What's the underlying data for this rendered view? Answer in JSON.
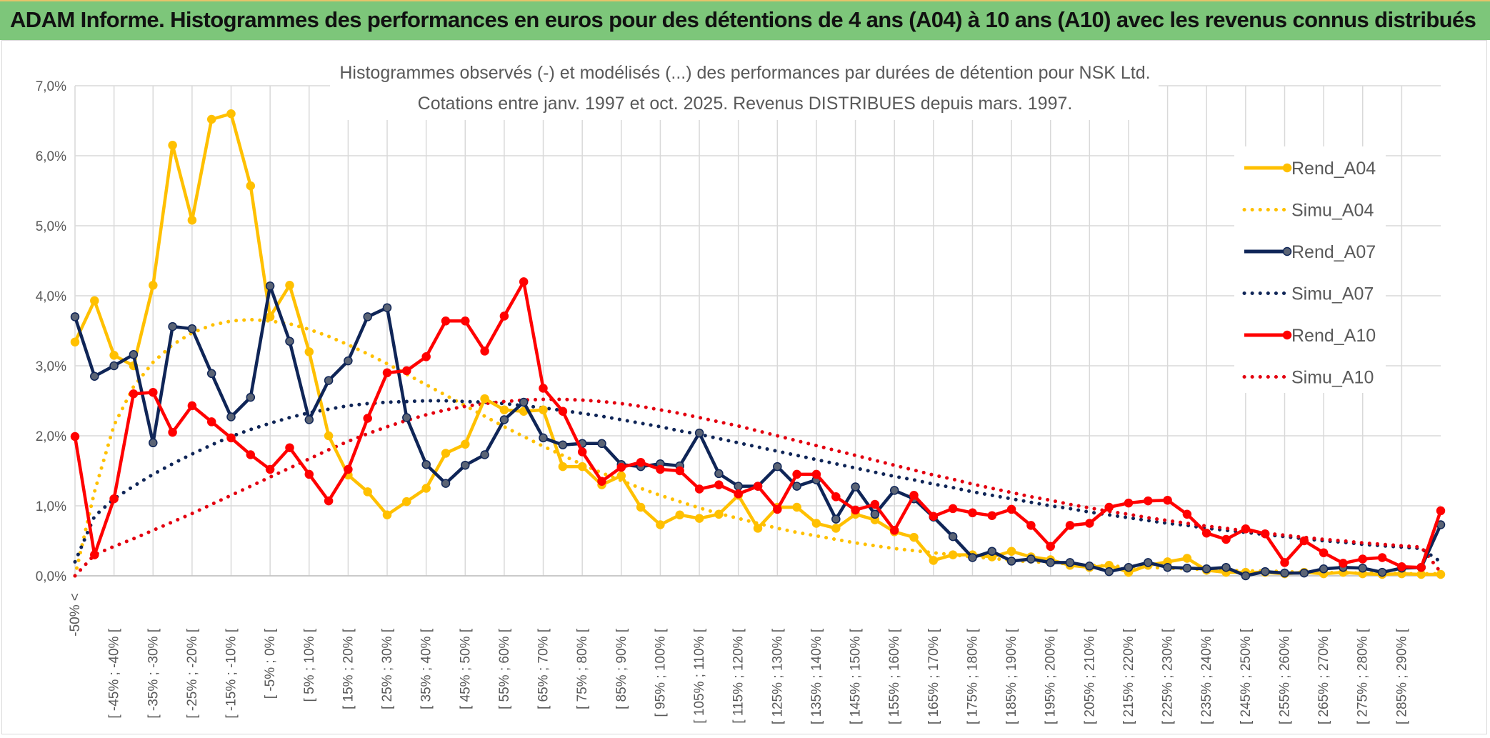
{
  "banner": {
    "title": "ADAM Informe. Histogrammes des performances en euros pour des détentions de 4 ans (A04) à 10 ans (A10) avec les revenus connus distribués",
    "bg_color": "#7dc67a"
  },
  "chart_data": {
    "type": "line",
    "title_lines": [
      "Histogrammes observés (-) et modélisés (...) des performances par durées de détention pour NSK Ltd.",
      "Cotations entre janv. 1997 et oct. 2025. Revenus DISTRIBUES depuis mars. 1997."
    ],
    "xlabel": "",
    "ylabel": "",
    "ylim": [
      0,
      7
    ],
    "y_ticks": [
      "0,0%",
      "1,0%",
      "2,0%",
      "3,0%",
      "4,0%",
      "5,0%",
      "6,0%",
      "7,0%"
    ],
    "grid": true,
    "legend_position": "right",
    "x_labels": [
      "-50% <",
      "[ -45% ; -40% [",
      "[ -35% ; -30% [",
      "[ -25% ; -20% [",
      "[ -15% ; -10% [",
      "[ -5% ; 0% [",
      "[ 5% ; 10% [",
      "[ 15% ; 20% [",
      "[ 25% ; 30% [",
      "[ 35% ; 40% [",
      "[ 45% ; 50% [",
      "[ 55% ; 60% [",
      "[ 65% ; 70% [",
      "[ 75% ; 80% [",
      "[ 85% ; 90% [",
      "[ 95% ; 100% [",
      "[ 105% ; 110% [",
      "[ 115% ; 120% [",
      "[ 125% ; 130% [",
      "[ 135% ; 140% [",
      "[ 145% ; 150% [",
      "[ 155% ; 160% [",
      "[ 165% ; 170% [",
      "[ 175% ; 180% [",
      "[ 185% ; 190% [",
      "[ 195% ; 200% [",
      "[ 205% ; 210% [",
      "[ 215% ; 220% [",
      "[ 225% ; 230% [",
      "[ 235% ; 240% [",
      "[ 245% ; 250% [",
      "[ 255% ; 260% [",
      "[ 265% ; 270% [",
      "[ 275% ; 280% [",
      "[ 285% ; 290% ["
    ],
    "series": [
      {
        "name": "Rend_A04",
        "color": "#ffc000",
        "style": "solid",
        "values": [
          3.34,
          3.93,
          3.15,
          3.0,
          4.15,
          6.15,
          5.08,
          6.52,
          6.6,
          5.57,
          3.7,
          4.15,
          3.2,
          2.0,
          1.44,
          1.2,
          0.87,
          1.06,
          1.25,
          1.75,
          1.88,
          2.53,
          2.37,
          2.35,
          2.37,
          1.56,
          1.56,
          1.3,
          1.43,
          0.98,
          0.73,
          0.87,
          0.82,
          0.88,
          1.15,
          0.68,
          0.98,
          0.98,
          0.75,
          0.68,
          0.88,
          0.8,
          0.63,
          0.55,
          0.22,
          0.3,
          0.3,
          0.27,
          0.35,
          0.27,
          0.23,
          0.15,
          0.12,
          0.15,
          0.05,
          0.15,
          0.2,
          0.25,
          0.08,
          0.05,
          0.05,
          0.05,
          0.03,
          0.05,
          0.03,
          0.05,
          0.03,
          0.02,
          0.03,
          0.02,
          0.02
        ]
      },
      {
        "name": "Simu_A04",
        "color": "#ffc000",
        "style": "dotted",
        "values": [
          0.0,
          1.2,
          2.15,
          2.7,
          3.05,
          3.3,
          3.47,
          3.58,
          3.64,
          3.66,
          3.64,
          3.6,
          3.52,
          3.42,
          3.3,
          3.17,
          3.03,
          2.88,
          2.73,
          2.58,
          2.43,
          2.28,
          2.13,
          1.99,
          1.85,
          1.72,
          1.59,
          1.47,
          1.36,
          1.25,
          1.15,
          1.06,
          0.97,
          0.89,
          0.82,
          0.75,
          0.68,
          0.62,
          0.57,
          0.52,
          0.47,
          0.43,
          0.39,
          0.36,
          0.33,
          0.3,
          0.27,
          0.25,
          0.22,
          0.2,
          0.19,
          0.17,
          0.15,
          0.14,
          0.13,
          0.12,
          0.11,
          0.1,
          0.09,
          0.08,
          0.07,
          0.07,
          0.06,
          0.05,
          0.05,
          0.04,
          0.04,
          0.04,
          0.03,
          0.03,
          0.03
        ]
      },
      {
        "name": "Rend_A07",
        "color": "#0f2557",
        "style": "solid",
        "values": [
          3.7,
          2.85,
          3.0,
          3.16,
          1.9,
          3.56,
          3.53,
          2.89,
          2.27,
          2.55,
          4.14,
          3.35,
          2.23,
          2.79,
          3.07,
          3.7,
          3.83,
          2.26,
          1.59,
          1.32,
          1.58,
          1.73,
          2.23,
          2.48,
          1.97,
          1.87,
          1.89,
          1.89,
          1.59,
          1.56,
          1.6,
          1.57,
          2.04,
          1.46,
          1.28,
          1.28,
          1.56,
          1.28,
          1.37,
          0.81,
          1.27,
          0.88,
          1.22,
          1.1,
          0.84,
          0.56,
          0.26,
          0.35,
          0.21,
          0.24,
          0.19,
          0.19,
          0.14,
          0.06,
          0.12,
          0.19,
          0.12,
          0.11,
          0.1,
          0.12,
          0.0,
          0.06,
          0.04,
          0.04,
          0.1,
          0.12,
          0.11,
          0.05,
          0.11,
          0.12,
          0.73
        ]
      },
      {
        "name": "Simu_A07",
        "color": "#0f2557",
        "style": "dotted",
        "values": [
          0.2,
          0.85,
          1.1,
          1.28,
          1.45,
          1.6,
          1.74,
          1.87,
          1.99,
          2.09,
          2.18,
          2.26,
          2.33,
          2.38,
          2.43,
          2.46,
          2.48,
          2.49,
          2.5,
          2.5,
          2.49,
          2.48,
          2.46,
          2.43,
          2.4,
          2.36,
          2.32,
          2.28,
          2.23,
          2.18,
          2.13,
          2.07,
          2.02,
          1.96,
          1.9,
          1.84,
          1.78,
          1.72,
          1.66,
          1.6,
          1.54,
          1.48,
          1.42,
          1.37,
          1.31,
          1.26,
          1.2,
          1.15,
          1.1,
          1.05,
          1.0,
          0.96,
          0.91,
          0.87,
          0.83,
          0.79,
          0.75,
          0.72,
          0.68,
          0.65,
          0.62,
          0.59,
          0.56,
          0.53,
          0.5,
          0.48,
          0.45,
          0.43,
          0.41,
          0.39,
          0.2
        ]
      },
      {
        "name": "Rend_A10",
        "color": "#ff0000",
        "style": "solid",
        "values": [
          1.99,
          0.3,
          1.1,
          2.6,
          2.62,
          2.05,
          2.43,
          2.2,
          1.97,
          1.73,
          1.52,
          1.83,
          1.45,
          1.07,
          1.52,
          2.25,
          2.9,
          2.93,
          3.13,
          3.64,
          3.64,
          3.21,
          3.71,
          4.2,
          2.68,
          2.35,
          1.77,
          1.35,
          1.55,
          1.62,
          1.52,
          1.5,
          1.24,
          1.3,
          1.17,
          1.28,
          0.95,
          1.45,
          1.45,
          1.13,
          0.94,
          1.02,
          0.65,
          1.15,
          0.85,
          0.96,
          0.9,
          0.86,
          0.95,
          0.72,
          0.42,
          0.72,
          0.75,
          0.98,
          1.04,
          1.07,
          1.08,
          0.88,
          0.61,
          0.52,
          0.67,
          0.6,
          0.19,
          0.5,
          0.33,
          0.18,
          0.24,
          0.26,
          0.13,
          0.12,
          0.93
        ]
      },
      {
        "name": "Simu_A10",
        "color": "#e3000f",
        "style": "dotted",
        "values": [
          0.0,
          0.3,
          0.42,
          0.53,
          0.65,
          0.77,
          0.89,
          1.02,
          1.15,
          1.28,
          1.41,
          1.54,
          1.67,
          1.8,
          1.92,
          2.03,
          2.13,
          2.22,
          2.3,
          2.37,
          2.42,
          2.46,
          2.49,
          2.51,
          2.52,
          2.52,
          2.51,
          2.49,
          2.46,
          2.42,
          2.37,
          2.32,
          2.26,
          2.2,
          2.14,
          2.07,
          2.0,
          1.93,
          1.86,
          1.79,
          1.72,
          1.65,
          1.58,
          1.51,
          1.44,
          1.38,
          1.31,
          1.25,
          1.19,
          1.13,
          1.08,
          1.02,
          0.97,
          0.92,
          0.88,
          0.83,
          0.79,
          0.75,
          0.71,
          0.68,
          0.64,
          0.61,
          0.58,
          0.55,
          0.52,
          0.5,
          0.47,
          0.45,
          0.43,
          0.41,
          0.05
        ]
      }
    ]
  }
}
